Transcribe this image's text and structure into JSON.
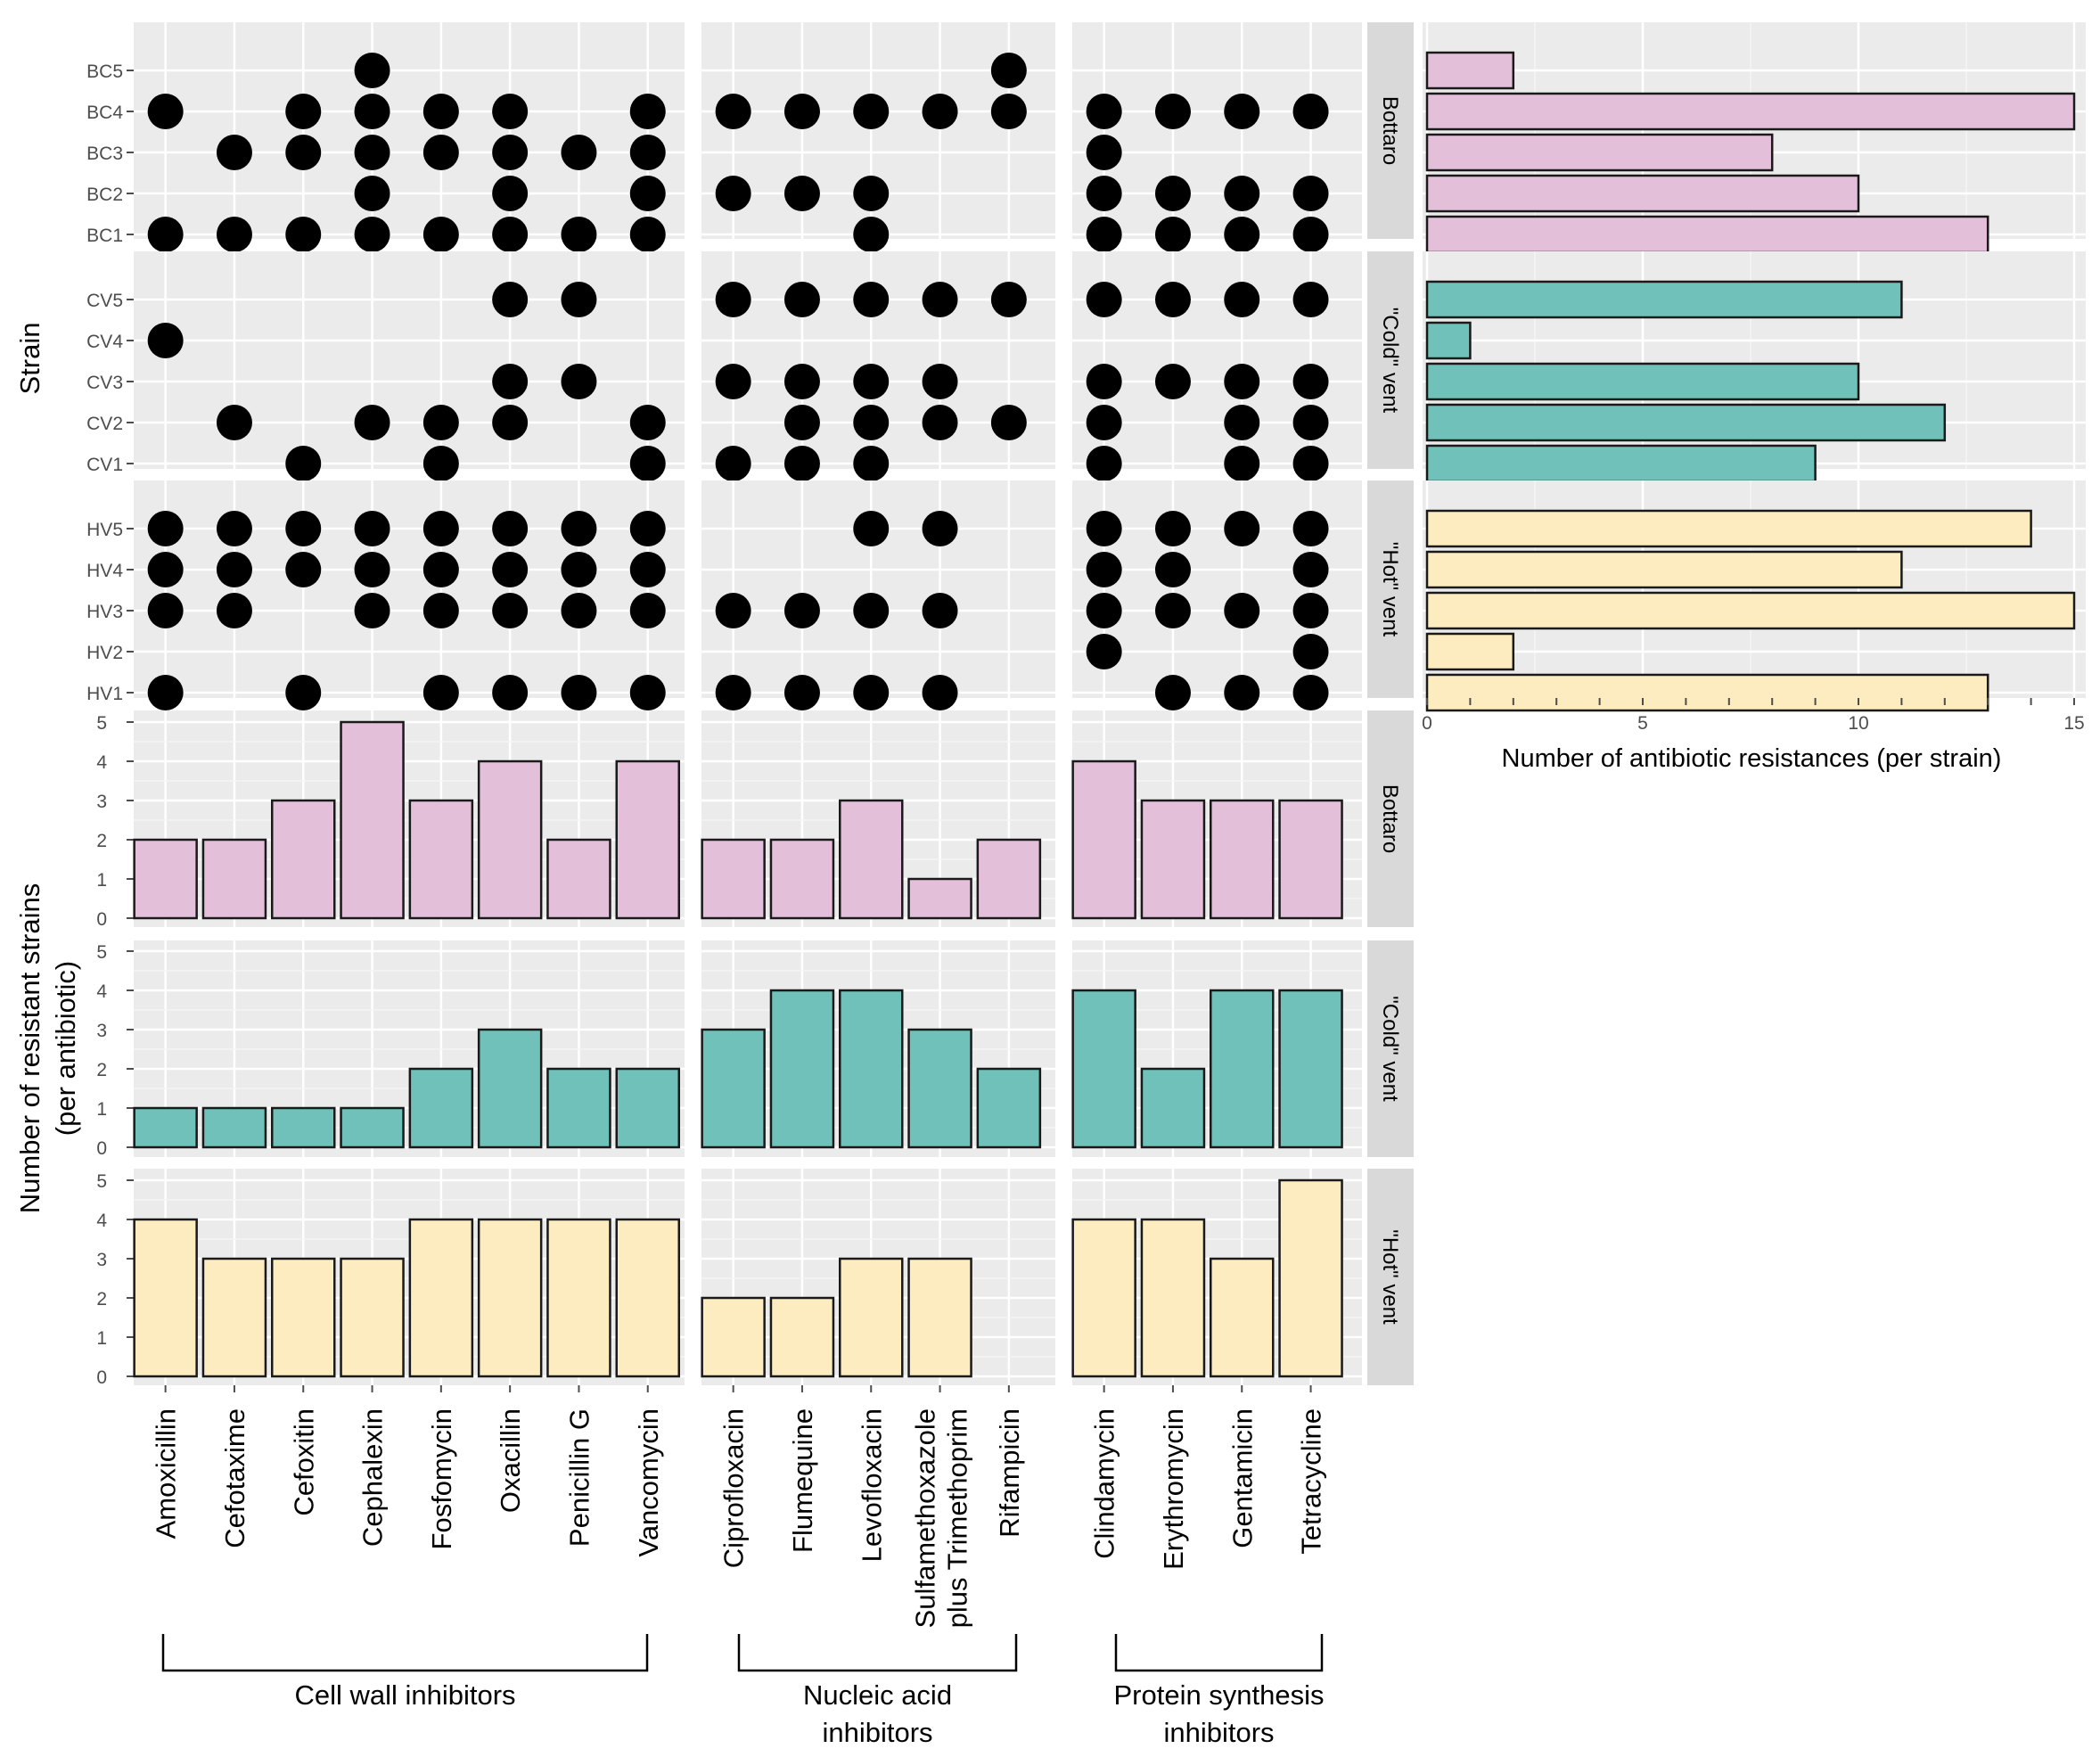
{
  "chart_data": {
    "type": "dot matrix + bar",
    "strain_axis_label": "Strain",
    "count_axis_label_line1": "Number of resistant strains",
    "count_axis_label_line2": "(per antibiotic)",
    "right_axis_label": "Number of antibiotic resistances (per strain)",
    "right_axis_range": [
      0,
      15
    ],
    "right_axis_ticks": [
      "0",
      "5",
      "10",
      "15"
    ],
    "count_axis_range": [
      0,
      5
    ],
    "count_axis_ticks": [
      "0",
      "1",
      "2",
      "3",
      "4",
      "5"
    ],
    "classes": [
      {
        "name": "Cell wall inhibitors",
        "label_lines": [
          "Cell wall inhibitors"
        ],
        "antibiotics": [
          "Amoxicillin",
          "Cefotaxime",
          "Cefoxitin",
          "Cephalexin",
          "Fosfomycin",
          "Oxacillin",
          "Penicillin G",
          "Vancomycin"
        ]
      },
      {
        "name": "Nucleic acid inhibitors",
        "label_lines": [
          "Nucleic acid",
          "inhibitors"
        ],
        "antibiotics": [
          "Ciprofloxacin",
          "Flumequine",
          "Levofloxacin",
          "Sulfamethoxazole plus Trimethoprim",
          "Rifampicin"
        ]
      },
      {
        "name": "Protein synthesis inhibitors",
        "label_lines": [
          "Protein synthesis",
          "inhibitors"
        ],
        "antibiotics": [
          "Clindamycin",
          "Erythromycin",
          "Gentamicin",
          "Tetracycline"
        ]
      }
    ],
    "sulfa_label_lines": [
      "Sulfamethoxazole",
      "plus Trimethoprim"
    ],
    "sites": [
      {
        "name": "Bottaro",
        "color": "#e4bfd9",
        "strains": [
          "BC5",
          "BC4",
          "BC3",
          "BC2",
          "BC1"
        ],
        "resistance_counts": [
          2,
          15,
          8,
          10,
          13
        ],
        "matrix": [
          [
            0,
            0,
            0,
            1,
            0,
            0,
            0,
            0,
            0,
            0,
            0,
            0,
            1,
            0,
            0,
            0,
            0
          ],
          [
            1,
            0,
            1,
            1,
            1,
            1,
            0,
            1,
            1,
            1,
            1,
            1,
            1,
            1,
            1,
            1,
            1
          ],
          [
            0,
            1,
            1,
            1,
            1,
            1,
            1,
            1,
            0,
            0,
            0,
            0,
            0,
            1,
            0,
            0,
            0
          ],
          [
            0,
            0,
            0,
            1,
            0,
            1,
            0,
            1,
            1,
            1,
            1,
            0,
            0,
            1,
            1,
            1,
            1
          ],
          [
            1,
            1,
            1,
            1,
            1,
            1,
            1,
            1,
            0,
            0,
            1,
            0,
            0,
            1,
            1,
            1,
            1
          ]
        ],
        "resistant_strains": [
          2,
          2,
          3,
          5,
          3,
          4,
          2,
          4,
          2,
          2,
          3,
          1,
          2,
          4,
          3,
          3,
          3
        ]
      },
      {
        "name": "\"Cold\" vent",
        "color": "#6fc1b9",
        "strains": [
          "CV5",
          "CV4",
          "CV3",
          "CV2",
          "CV1"
        ],
        "resistance_counts": [
          11,
          1,
          10,
          12,
          9
        ],
        "matrix": [
          [
            0,
            0,
            0,
            0,
            0,
            1,
            1,
            0,
            1,
            1,
            1,
            1,
            1,
            1,
            1,
            1,
            1
          ],
          [
            1,
            0,
            0,
            0,
            0,
            0,
            0,
            0,
            0,
            0,
            0,
            0,
            0,
            0,
            0,
            0,
            0
          ],
          [
            0,
            0,
            0,
            0,
            0,
            1,
            1,
            0,
            1,
            1,
            1,
            1,
            0,
            1,
            1,
            1,
            1
          ],
          [
            0,
            1,
            0,
            1,
            1,
            1,
            0,
            1,
            0,
            1,
            1,
            1,
            1,
            1,
            0,
            1,
            1
          ],
          [
            0,
            0,
            1,
            0,
            1,
            0,
            0,
            1,
            1,
            1,
            1,
            0,
            0,
            1,
            0,
            1,
            1
          ]
        ],
        "resistant_strains": [
          1,
          1,
          1,
          1,
          2,
          3,
          2,
          2,
          3,
          4,
          4,
          3,
          2,
          4,
          2,
          4,
          4
        ]
      },
      {
        "name": "\"Hot\" vent",
        "color": "#fdecbf",
        "strains": [
          "HV5",
          "HV4",
          "HV3",
          "HV2",
          "HV1"
        ],
        "resistance_counts": [
          14,
          11,
          15,
          2,
          13
        ],
        "matrix": [
          [
            1,
            1,
            1,
            1,
            1,
            1,
            1,
            1,
            0,
            0,
            1,
            1,
            0,
            1,
            1,
            1,
            1
          ],
          [
            1,
            1,
            1,
            1,
            1,
            1,
            1,
            1,
            0,
            0,
            0,
            0,
            0,
            1,
            1,
            0,
            1
          ],
          [
            1,
            1,
            0,
            1,
            1,
            1,
            1,
            1,
            1,
            1,
            1,
            1,
            0,
            1,
            1,
            1,
            1
          ],
          [
            0,
            0,
            0,
            0,
            0,
            0,
            0,
            0,
            0,
            0,
            0,
            0,
            0,
            1,
            0,
            0,
            1
          ],
          [
            1,
            0,
            1,
            0,
            1,
            1,
            1,
            1,
            1,
            1,
            1,
            1,
            0,
            0,
            1,
            1,
            1
          ]
        ],
        "resistant_strains": [
          4,
          3,
          3,
          3,
          4,
          4,
          4,
          4,
          2,
          2,
          3,
          3,
          0,
          4,
          4,
          3,
          5
        ]
      }
    ]
  }
}
